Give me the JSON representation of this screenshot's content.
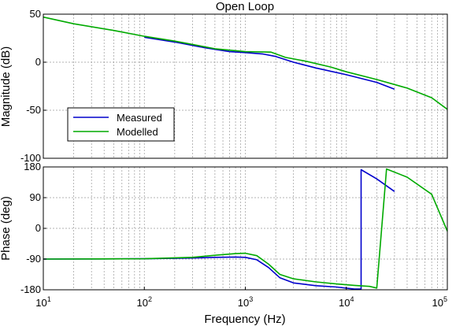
{
  "chart_data": [
    {
      "type": "line",
      "title": "Open Loop",
      "xlabel": "",
      "ylabel": "Magnitude (dB)",
      "xscale": "log",
      "xlim": [
        10,
        100000
      ],
      "ylim": [
        -100,
        50
      ],
      "yticks": [
        50,
        0,
        -50,
        -100
      ],
      "grid": true,
      "legend_position": "lower-left",
      "series": [
        {
          "name": "Measured",
          "color": "#0000cc",
          "x": [
            100,
            200,
            400,
            700,
            1000,
            1500,
            2000,
            3000,
            5000,
            10000,
            20000,
            30000
          ],
          "y": [
            26,
            21,
            15,
            11,
            10,
            8.5,
            6,
            0,
            -6,
            -13,
            -21,
            -28
          ]
        },
        {
          "name": "Modelled",
          "color": "#00aa00",
          "x": [
            10,
            20,
            50,
            100,
            200,
            500,
            1000,
            1800,
            2500,
            4000,
            7000,
            10000,
            20000,
            40000,
            70000,
            100000
          ],
          "y": [
            47,
            40,
            33,
            27,
            22,
            14,
            11,
            10.5,
            5,
            1,
            -5,
            -10,
            -18,
            -27,
            -37,
            -49
          ]
        }
      ]
    },
    {
      "type": "line",
      "title": "",
      "xlabel": "Frequency  (Hz)",
      "ylabel": "Phase (deg)",
      "xscale": "log",
      "xlim": [
        10,
        100000
      ],
      "ylim": [
        -180,
        180
      ],
      "yticks": [
        180,
        90,
        0,
        -90,
        -180
      ],
      "xticks": [
        {
          "value": 10,
          "base": "10",
          "exp": "1"
        },
        {
          "value": 100,
          "base": "10",
          "exp": "2"
        },
        {
          "value": 1000,
          "base": "10",
          "exp": "3"
        },
        {
          "value": 10000,
          "base": "10",
          "exp": "4"
        },
        {
          "value": 100000,
          "base": "10",
          "exp": "5"
        }
      ],
      "grid": true,
      "series": [
        {
          "name": "Measured",
          "color": "#0000cc",
          "x": [
            10,
            100,
            300,
            500,
            800,
            1000,
            1300,
            1700,
            2200,
            3000,
            5000,
            8000,
            12000,
            14000,
            14001,
            20000,
            30000
          ],
          "y": [
            -90,
            -89,
            -87,
            -85,
            -84,
            -85,
            -92,
            -115,
            -145,
            -160,
            -168,
            -172,
            -178,
            -178,
            172,
            145,
            108
          ]
        },
        {
          "name": "Modelled",
          "color": "#00aa00",
          "x": [
            10,
            100,
            300,
            500,
            800,
            1000,
            1300,
            1700,
            2200,
            3000,
            5000,
            8000,
            12000,
            17000,
            20000,
            20001,
            25000,
            40000,
            70000,
            100000
          ],
          "y": [
            -90,
            -89,
            -85,
            -79,
            -74,
            -73,
            -80,
            -105,
            -135,
            -148,
            -157,
            -163,
            -167,
            -170,
            -175,
            -175,
            174,
            150,
            100,
            -8
          ]
        }
      ]
    }
  ]
}
